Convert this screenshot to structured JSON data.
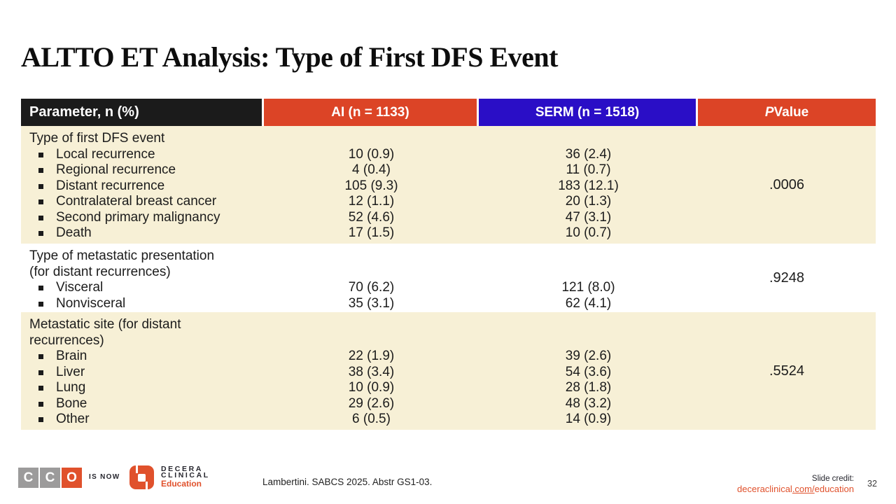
{
  "colors": {
    "orange": "#DC4426",
    "blue": "#2A0EC6",
    "black": "#1B1B1B",
    "beige": "#F7F0D6",
    "accent": "#E0512C",
    "ink": "#1C1C1C"
  },
  "slide": {
    "title": "ALTTO ET Analysis: Type of First DFS Event"
  },
  "table": {
    "headers": {
      "parameter": "Parameter, n (%)",
      "ai": "AI (n = 1133)",
      "serm": "SERM (n = 1518)",
      "p_italic": "P",
      "p_rest": " Value"
    },
    "rows": [
      {
        "group_lines": [
          "Type of first DFS event"
        ],
        "items": [
          {
            "label": "Local recurrence",
            "ai": "10 (0.9)",
            "serm": "36 (2.4)"
          },
          {
            "label": "Regional recurrence",
            "ai": "4 (0.4)",
            "serm": "11 (0.7)"
          },
          {
            "label": "Distant recurrence",
            "ai": "105 (9.3)",
            "serm": "183 (12.1)"
          },
          {
            "label": "Contralateral breast cancer",
            "ai": "12 (1.1)",
            "serm": "20 (1.3)"
          },
          {
            "label": "Second primary malignancy",
            "ai": "52 (4.6)",
            "serm": "47 (3.1)"
          },
          {
            "label": "Death",
            "ai": "17 (1.5)",
            "serm": "10 (0.7)"
          }
        ],
        "p_value": ".0006"
      },
      {
        "group_lines": [
          "Type of metastatic presentation",
          "(for distant recurrences)"
        ],
        "items": [
          {
            "label": "Visceral",
            "ai": "70 (6.2)",
            "serm": "121 (8.0)"
          },
          {
            "label": "Nonvisceral",
            "ai": "35 (3.1)",
            "serm": "62 (4.1)"
          }
        ],
        "p_value": ".9248"
      },
      {
        "group_lines": [
          "Metastatic site (for distant",
          "recurrences)"
        ],
        "items": [
          {
            "label": "Brain",
            "ai": "22 (1.9)",
            "serm": "39 (2.6)"
          },
          {
            "label": "Liver",
            "ai": "38 (3.4)",
            "serm": "54 (3.6)"
          },
          {
            "label": "Lung",
            "ai": "10 (0.9)",
            "serm": "28 (1.8)"
          },
          {
            "label": "Bone",
            "ai": "29 (2.6)",
            "serm": "48 (3.2)"
          },
          {
            "label": "Other",
            "ai": "6 (0.5)",
            "serm": "14 (0.9)"
          }
        ],
        "p_value": ".5524"
      }
    ]
  },
  "footer": {
    "cco": {
      "letters": [
        "C",
        "C",
        "O"
      ]
    },
    "is_now": "IS NOW",
    "decera": {
      "line1": "DECERA",
      "line2": "CLINICAL",
      "line3": "Education"
    },
    "citation": "Lambertini. SABCS 2025. Abstr GS1-03.",
    "credit_label": "Slide credit:",
    "credit_link": {
      "part1": "deceraclinical",
      "part2": ".com/",
      "part3": "education"
    },
    "page_number": "32"
  }
}
